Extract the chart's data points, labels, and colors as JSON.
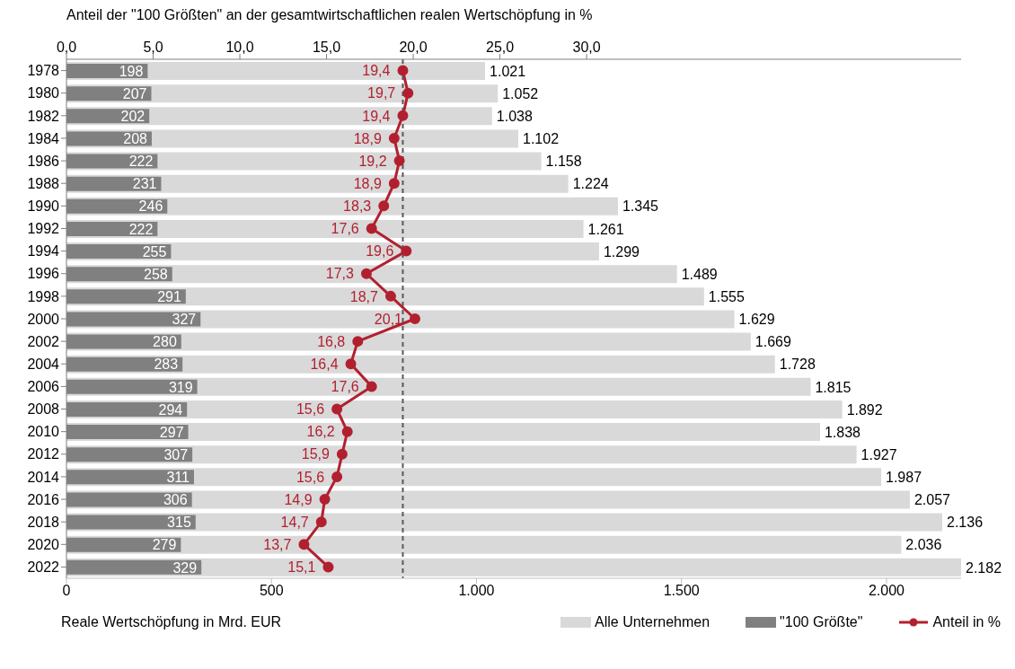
{
  "chart_data": {
    "type": "bar",
    "orientation": "horizontal",
    "x2label": "Anteil der \"100 Größten\" an der gesamtwirtschaftlichen realen Wertschöpfung in %",
    "xlabel": "Reale Wertschöpfung in Mrd. EUR",
    "categories": [
      "1978",
      "1980",
      "1982",
      "1984",
      "1986",
      "1988",
      "1990",
      "1992",
      "1994",
      "1996",
      "1998",
      "2000",
      "2002",
      "2004",
      "2006",
      "2008",
      "2010",
      "2012",
      "2014",
      "2016",
      "2018",
      "2020",
      "2022"
    ],
    "xlim": [
      0,
      2182
    ],
    "xticks": [
      0,
      500,
      {
        "value": 1000,
        "label": "1.000"
      },
      {
        "value": 1500,
        "label": "1.500"
      },
      {
        "value": 2000,
        "label": "2.000"
      }
    ],
    "x2lim": [
      0,
      51.6
    ],
    "x2ticks": [
      {
        "value": 0,
        "label": "0,0"
      },
      {
        "value": 5,
        "label": "5,0"
      },
      {
        "value": 10,
        "label": "10,0"
      },
      {
        "value": 15,
        "label": "15,0"
      },
      {
        "value": 20,
        "label": "20,0"
      },
      {
        "value": 25,
        "label": "25,0"
      },
      {
        "value": 30,
        "label": "30,0"
      }
    ],
    "series": [
      {
        "name": "Alle Unternehmen",
        "color": "#d9d9d9",
        "values": [
          1021,
          1052,
          1038,
          1102,
          1158,
          1224,
          1345,
          1261,
          1299,
          1489,
          1555,
          1629,
          1669,
          1728,
          1815,
          1892,
          1838,
          1927,
          1987,
          2057,
          2136,
          2036,
          2182
        ],
        "value_labels": [
          "1.021",
          "1.052",
          "1.038",
          "1.102",
          "1.158",
          "1.224",
          "1.345",
          "1.261",
          "1.299",
          "1.489",
          "1.555",
          "1.629",
          "1.669",
          "1.728",
          "1.815",
          "1.892",
          "1.838",
          "1.927",
          "1.987",
          "2.057",
          "2.136",
          "2.036",
          "2.182"
        ]
      },
      {
        "name": "\"100 Größte\"",
        "color": "#808080",
        "values": [
          198,
          207,
          202,
          208,
          222,
          231,
          246,
          222,
          255,
          258,
          291,
          327,
          280,
          283,
          319,
          294,
          297,
          307,
          311,
          306,
          315,
          279,
          329
        ],
        "value_labels": [
          "198",
          "207",
          "202",
          "208",
          "222",
          "231",
          "246",
          "222",
          "255",
          "258",
          "291",
          "327",
          "280",
          "283",
          "319",
          "294",
          "297",
          "307",
          "311",
          "306",
          "315",
          "279",
          "329"
        ]
      },
      {
        "name": "Anteil in %",
        "type": "line",
        "axis": "x2",
        "color": "#b22030",
        "marker": "circle",
        "values": [
          19.4,
          19.7,
          19.4,
          18.9,
          19.2,
          18.9,
          18.3,
          17.6,
          19.6,
          17.3,
          18.7,
          20.1,
          16.8,
          16.4,
          17.6,
          15.6,
          16.2,
          15.9,
          15.6,
          14.9,
          14.7,
          13.7,
          15.1
        ],
        "value_labels": [
          "19,4",
          "19,7",
          "19,4",
          "18,9",
          "19,2",
          "18,9",
          "18,3",
          "17,6",
          "19,6",
          "17,3",
          "18,7",
          "20,1",
          "16,8",
          "16,4",
          "17,6",
          "15,6",
          "16,2",
          "15,9",
          "15,6",
          "14,9",
          "14,7",
          "13,7",
          "15,1"
        ]
      }
    ],
    "ref_lines": [
      {
        "axis": "x2",
        "value": 19.4,
        "color": "#595959",
        "line_style": "dashed"
      }
    ],
    "legend": "bottom right"
  }
}
